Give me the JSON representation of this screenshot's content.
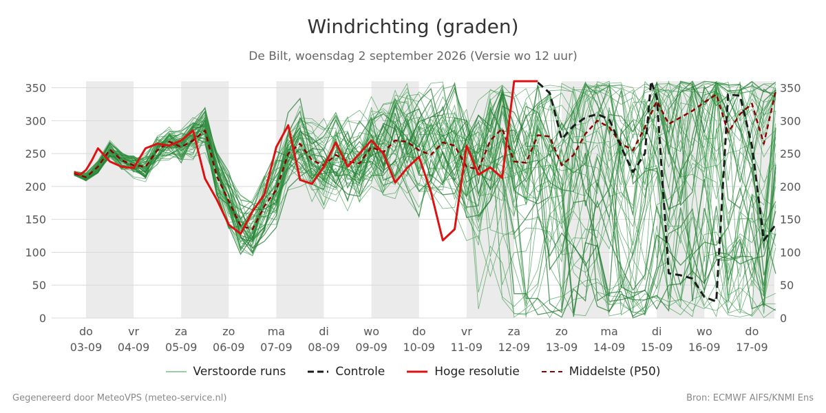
{
  "title": "Windrichting (graden)",
  "subtitle": "De Bilt, woensdag  2 september 2026 (Versie wo 12 uur)",
  "footer": {
    "left": "Gegenereerd door MeteoVPS (meteo-service.nl)",
    "right": "Bron: ECMWF AIFS/KNMI Ens"
  },
  "colors": {
    "members": "#3a9a4a",
    "members_dark": "#1f7a2e",
    "control": "#1a1a1a",
    "hres": "#dd1111",
    "median": "#8b0000",
    "weekend_band": "#ebebeb",
    "grid": "#d9d9d9"
  },
  "chart_data": {
    "type": "line",
    "title": "Windrichting (graden)",
    "subtitle": "De Bilt, woensdag  2 september 2026 (Versie wo 12 uur)",
    "ylim": [
      0,
      360
    ],
    "yticks": [
      0,
      50,
      100,
      150,
      200,
      250,
      300,
      350
    ],
    "grid": true,
    "legend_position": "bottom",
    "x_categories": [
      {
        "day": "do",
        "date": "03-09"
      },
      {
        "day": "vr",
        "date": "04-09"
      },
      {
        "day": "za",
        "date": "05-09"
      },
      {
        "day": "zo",
        "date": "06-09"
      },
      {
        "day": "ma",
        "date": "07-09"
      },
      {
        "day": "di",
        "date": "08-09"
      },
      {
        "day": "wo",
        "date": "09-09"
      },
      {
        "day": "do",
        "date": "10-09"
      },
      {
        "day": "vr",
        "date": "11-09"
      },
      {
        "day": "za",
        "date": "12-09"
      },
      {
        "day": "zo",
        "date": "13-09"
      },
      {
        "day": "ma",
        "date": "14-09"
      },
      {
        "day": "di",
        "date": "15-09"
      },
      {
        "day": "wo",
        "date": "16-09"
      },
      {
        "day": "do",
        "date": "17-09"
      }
    ],
    "x_unit_note": "x in days since forecast start (03-09 00h = 0)",
    "shaded_periods": [
      [
        0,
        1
      ],
      [
        2,
        3
      ],
      [
        4,
        5
      ],
      [
        6,
        7
      ],
      [
        8,
        9
      ],
      [
        10,
        11
      ],
      [
        12,
        13
      ],
      [
        14,
        14.5
      ]
    ],
    "series": [
      {
        "name": "Hoge resolutie",
        "style": "solid",
        "x": [
          -0.25,
          -0.125,
          0,
          0.125,
          0.25,
          0.5,
          0.75,
          1,
          1.25,
          1.5,
          1.75,
          2,
          2.25,
          2.5,
          2.75,
          3,
          3.25,
          3.5,
          3.75,
          4,
          4.25,
          4.5,
          4.75,
          5,
          5.25,
          5.5,
          5.75,
          6,
          6.25,
          6.5,
          6.75,
          7,
          7.25,
          7.5,
          7.75,
          8,
          8.25,
          8.5,
          8.75,
          9,
          9.25,
          9.5
        ],
        "y": [
          222,
          218,
          225,
          240,
          258,
          238,
          230,
          228,
          258,
          265,
          262,
          270,
          285,
          212,
          180,
          142,
          128,
          162,
          188,
          260,
          293,
          210,
          204,
          230,
          267,
          230,
          250,
          270,
          250,
          206,
          228,
          245,
          192,
          118,
          135,
          262,
          218,
          229,
          213,
          360,
          360,
          360
        ]
      },
      {
        "name": "Controle",
        "style": "dashed",
        "x": [
          9.5,
          9.75,
          10,
          10.25,
          10.5,
          10.75,
          11,
          11.25,
          11.5,
          11.75,
          11.88,
          12,
          12.25,
          12.5,
          12.75,
          13,
          13.25,
          13.5,
          13.75,
          14,
          14.25,
          14.5
        ],
        "y": [
          358,
          342,
          272,
          292,
          305,
          310,
          302,
          260,
          222,
          250,
          360,
          335,
          68,
          65,
          60,
          32,
          25,
          340,
          338,
          262,
          118,
          142
        ]
      },
      {
        "name": "Middelste (P50)",
        "style": "dashed",
        "x": [
          -0.25,
          0,
          0.25,
          0.5,
          0.75,
          1,
          1.25,
          1.5,
          1.75,
          2,
          2.25,
          2.5,
          2.75,
          3,
          3.25,
          3.5,
          3.75,
          4,
          4.25,
          4.5,
          4.75,
          5,
          5.25,
          5.5,
          5.75,
          6,
          6.25,
          6.5,
          6.75,
          7,
          7.25,
          7.5,
          7.75,
          8,
          8.25,
          8.5,
          8.75,
          9,
          9.25,
          9.5,
          9.75,
          10,
          10.25,
          10.5,
          10.75,
          11,
          11.25,
          11.5,
          11.75,
          12,
          12.25,
          12.5,
          12.75,
          13,
          13.25,
          13.5,
          13.75,
          14,
          14.25,
          14.5
        ],
        "y": [
          220,
          214,
          230,
          256,
          240,
          232,
          230,
          255,
          268,
          260,
          270,
          285,
          215,
          178,
          140,
          135,
          170,
          195,
          250,
          265,
          240,
          232,
          248,
          238,
          235,
          260,
          252,
          270,
          268,
          255,
          248,
          267,
          262,
          230,
          226,
          270,
          288,
          238,
          236,
          278,
          276,
          232,
          248,
          280,
          300,
          290,
          265,
          255,
          290,
          330,
          295,
          305,
          315,
          328,
          340,
          282,
          310,
          326,
          265,
          345
        ]
      }
    ],
    "ensemble": {
      "name": "Verstoorde runs",
      "member_count": 50,
      "note": "50 perturbed members; values are sampled around the median with spread increasing with lead time (illustrative envelope)"
    }
  },
  "legend": {
    "items": [
      {
        "label": "Verstoorde runs",
        "kind": "thin-green"
      },
      {
        "label": "Controle",
        "kind": "black-dashed"
      },
      {
        "label": "Hoge resolutie",
        "kind": "red-solid"
      },
      {
        "label": "Middelste (P50)",
        "kind": "darkred-dashed"
      }
    ]
  }
}
